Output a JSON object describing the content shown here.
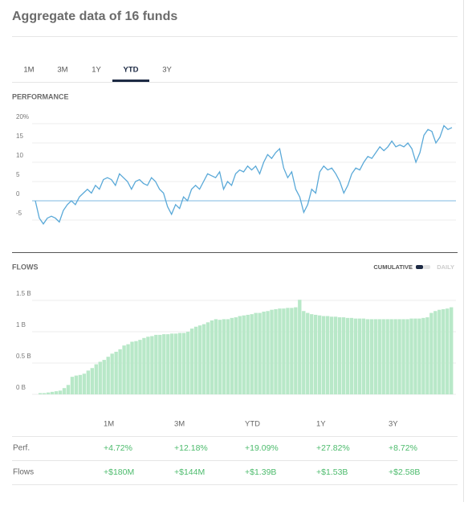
{
  "title": "Aggregate data of 16 funds",
  "tabs": [
    "1M",
    "3M",
    "1Y",
    "YTD",
    "3Y"
  ],
  "active_tab_index": 3,
  "chart_data": [
    {
      "type": "line",
      "title": "PERFORMANCE",
      "color": "#5aa9d8",
      "zero_line_color": "#7fb8e0",
      "grid": true,
      "ylim": [
        -13,
        24
      ],
      "yticks": [
        {
          "value": 20,
          "label": "20%"
        },
        15,
        10,
        5,
        0,
        -5
      ],
      "values": [
        0,
        -4.5,
        -6,
        -4.5,
        -4,
        -4.5,
        -5.5,
        -2.5,
        -1,
        0,
        -1,
        1,
        2,
        3,
        2,
        4,
        3,
        5.5,
        6,
        5.5,
        4,
        7,
        6,
        5,
        3,
        5,
        5.5,
        4.5,
        4,
        6,
        5,
        3,
        2,
        -1.5,
        -3.5,
        -1,
        -2,
        1,
        0,
        3,
        4,
        3,
        5,
        7,
        6.5,
        6,
        7.5,
        3,
        5,
        4,
        7,
        8,
        7.5,
        9,
        8,
        9,
        7,
        10,
        12,
        11,
        12.5,
        13.5,
        8.5,
        6,
        7.5,
        3,
        1,
        -3,
        -1,
        3,
        2,
        7.5,
        9,
        8,
        8.5,
        7,
        5,
        2,
        4,
        7,
        8.5,
        8,
        10,
        11.5,
        11,
        12.5,
        14,
        13,
        14,
        15.5,
        14,
        14.5,
        14,
        15,
        13.5,
        10,
        12.5,
        17,
        18.5,
        18,
        15,
        16.5,
        19.5,
        18.5,
        19
      ]
    },
    {
      "type": "bar",
      "title": "FLOWS",
      "modes": [
        "CUMULATIVE",
        "DAILY"
      ],
      "active_mode_index": 0,
      "color": "#b8e8c8",
      "grid": true,
      "ylim": [
        0,
        1.75
      ],
      "yticks": [
        {
          "value": 1.5,
          "label": "1.5 B"
        },
        {
          "value": 1,
          "label": "1 B"
        },
        {
          "value": 0.5,
          "label": "0.5 B"
        },
        {
          "value": 0,
          "label": "0 B"
        }
      ],
      "values": [
        0.02,
        0.02,
        0.03,
        0.04,
        0.05,
        0.06,
        0.1,
        0.15,
        0.28,
        0.3,
        0.31,
        0.33,
        0.38,
        0.42,
        0.48,
        0.52,
        0.55,
        0.6,
        0.65,
        0.68,
        0.72,
        0.78,
        0.8,
        0.84,
        0.85,
        0.87,
        0.9,
        0.92,
        0.93,
        0.95,
        0.95,
        0.96,
        0.96,
        0.97,
        0.97,
        0.98,
        0.98,
        1.0,
        1.05,
        1.08,
        1.1,
        1.12,
        1.15,
        1.18,
        1.2,
        1.19,
        1.2,
        1.2,
        1.22,
        1.23,
        1.25,
        1.26,
        1.27,
        1.28,
        1.3,
        1.3,
        1.32,
        1.33,
        1.35,
        1.36,
        1.37,
        1.37,
        1.38,
        1.38,
        1.39,
        1.51,
        1.33,
        1.3,
        1.28,
        1.27,
        1.26,
        1.25,
        1.25,
        1.24,
        1.24,
        1.23,
        1.23,
        1.22,
        1.22,
        1.21,
        1.21,
        1.21,
        1.2,
        1.2,
        1.2,
        1.2,
        1.2,
        1.2,
        1.2,
        1.2,
        1.2,
        1.2,
        1.2,
        1.21,
        1.21,
        1.21,
        1.22,
        1.23,
        1.3,
        1.33,
        1.35,
        1.36,
        1.37,
        1.39
      ]
    }
  ],
  "table": {
    "columns": [
      "1M",
      "3M",
      "YTD",
      "1Y",
      "3Y"
    ],
    "rows": [
      {
        "label": "Perf.",
        "cells": [
          "+4.72%",
          "+12.18%",
          "+19.09%",
          "+27.82%",
          "+8.72%"
        ]
      },
      {
        "label": "Flows",
        "cells": [
          "+$180M",
          "+$144M",
          "+$1.39B",
          "+$1.53B",
          "+$2.58B"
        ]
      }
    ]
  }
}
